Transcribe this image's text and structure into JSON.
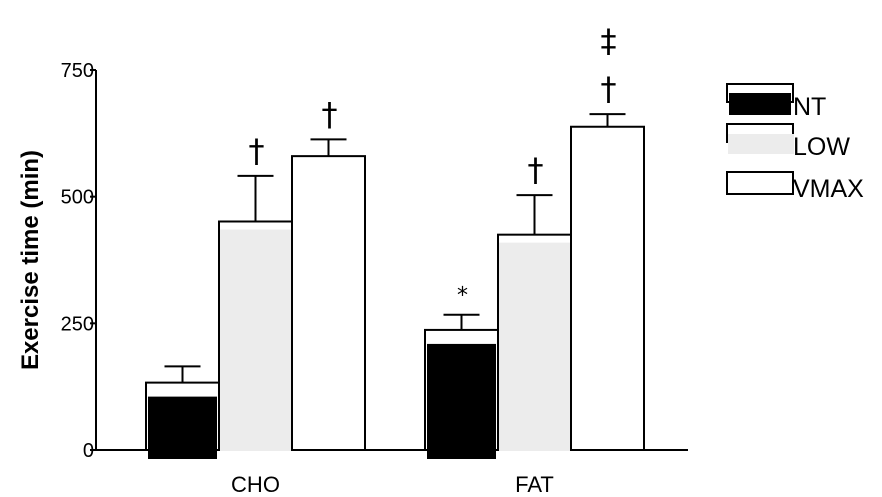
{
  "chart_data": {
    "type": "bar",
    "ylabel": "Exercise time (min)",
    "xlabel": "",
    "ylim": [
      0,
      750
    ],
    "yticks": [
      0,
      250,
      500,
      750
    ],
    "categories": [
      "CHO",
      "FAT"
    ],
    "series": [
      {
        "name": "NT",
        "color": "#000000",
        "values": [
          133,
          237
        ],
        "errors": [
          32,
          30
        ]
      },
      {
        "name": "LOW",
        "color": "#ececec",
        "values": [
          451,
          425
        ],
        "errors": [
          90,
          78
        ]
      },
      {
        "name": "VMAX",
        "color": "#ffffff",
        "values": [
          580,
          638
        ],
        "errors": [
          33,
          25
        ]
      }
    ],
    "annotations": [
      {
        "category": 1,
        "series": 0,
        "text": "*"
      },
      {
        "category": 0,
        "series": 1,
        "text": "†"
      },
      {
        "category": 0,
        "series": 2,
        "text": "†"
      },
      {
        "category": 1,
        "series": 1,
        "text": "†"
      },
      {
        "category": 1,
        "series": 2,
        "text": "†"
      },
      {
        "category": 1,
        "series": 2,
        "text": "‡"
      }
    ],
    "legend": {
      "position": "right"
    },
    "grid": false
  }
}
